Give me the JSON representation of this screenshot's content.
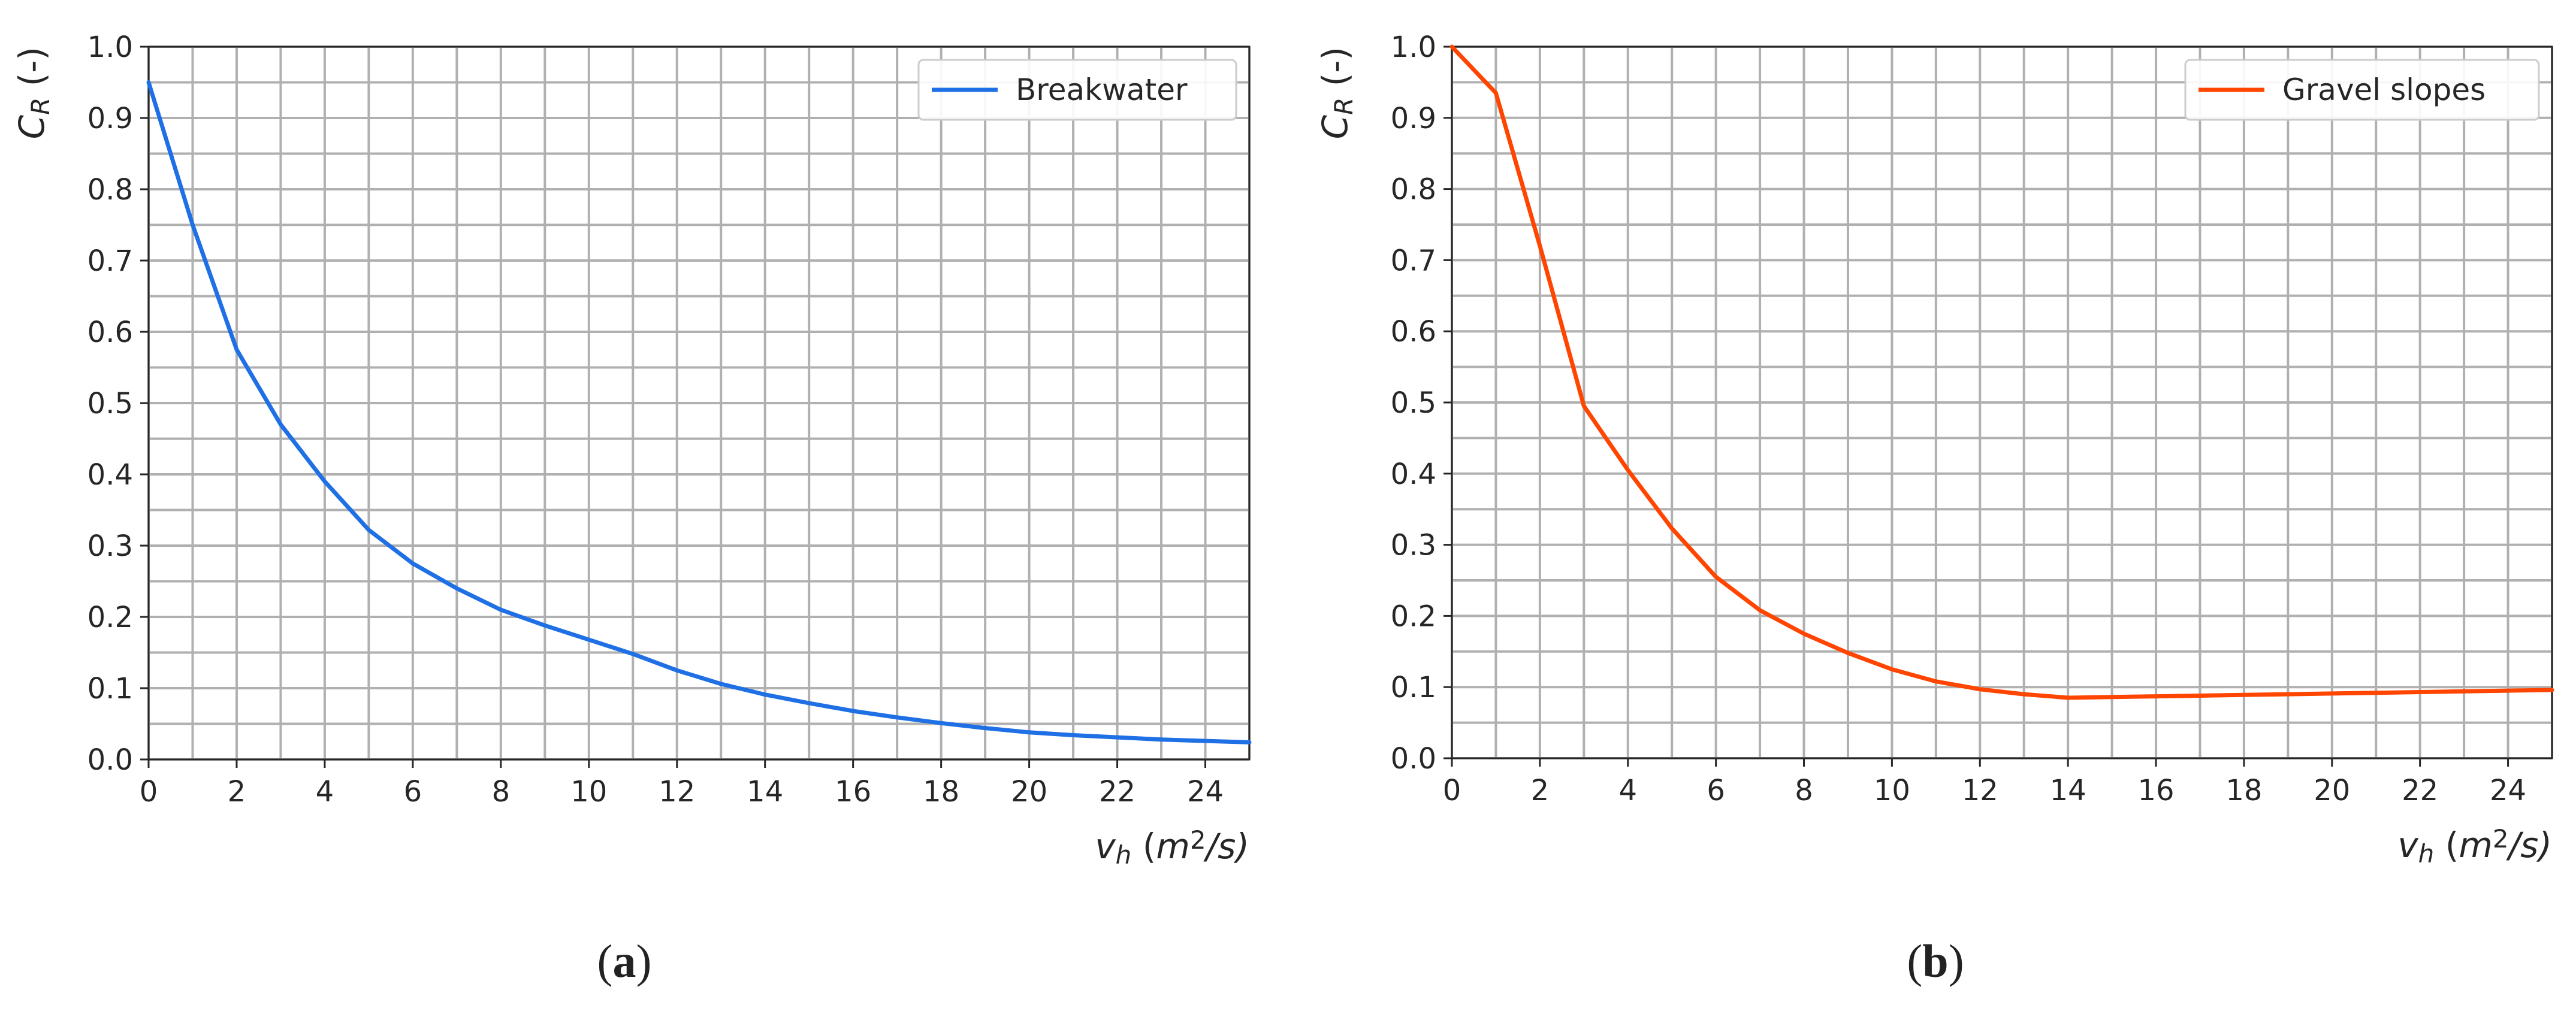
{
  "chart_data": [
    {
      "type": "line",
      "panel_label_open": "(",
      "panel_label_letter": "a",
      "panel_label_close": ")",
      "xlabel_main": "v",
      "xlabel_sub": "h",
      "xlabel_open": " (",
      "xlabel_unit": "m",
      "xlabel_sup": "2",
      "xlabel_tail": "/s)",
      "ylabel_main": "C",
      "ylabel_sub": "R",
      "ylabel_tail": " (-)",
      "xlim": [
        0,
        25
      ],
      "ylim": [
        0,
        1.0
      ],
      "x_ticks": [
        "0",
        "2",
        "4",
        "6",
        "8",
        "10",
        "12",
        "14",
        "16",
        "18",
        "20",
        "22",
        "24"
      ],
      "y_ticks": [
        "0.0",
        "0.1",
        "0.2",
        "0.3",
        "0.4",
        "0.5",
        "0.6",
        "0.7",
        "0.8",
        "0.9",
        "1.0"
      ],
      "grid": true,
      "legend_position": "top-right",
      "series": [
        {
          "name": "Breakwater",
          "color": "#1f6fe5",
          "x": [
            0,
            1,
            2,
            3,
            4,
            5,
            6,
            7,
            8,
            9,
            10,
            11,
            12,
            13,
            14,
            15,
            16,
            17,
            18,
            19,
            20,
            21,
            22,
            23,
            24,
            25
          ],
          "y": [
            0.95,
            0.75,
            0.575,
            0.47,
            0.39,
            0.322,
            0.275,
            0.24,
            0.21,
            0.188,
            0.168,
            0.148,
            0.125,
            0.106,
            0.091,
            0.079,
            0.068,
            0.059,
            0.051,
            0.044,
            0.038,
            0.034,
            0.031,
            0.028,
            0.026,
            0.024
          ]
        }
      ]
    },
    {
      "type": "line",
      "panel_label_open": "(",
      "panel_label_letter": "b",
      "panel_label_close": ")",
      "xlabel_main": "v",
      "xlabel_sub": "h",
      "xlabel_open": " (",
      "xlabel_unit": "m",
      "xlabel_sup": "2",
      "xlabel_tail": "/s)",
      "ylabel_main": "C",
      "ylabel_sub": "R",
      "ylabel_tail": " (-)",
      "xlim": [
        0,
        25
      ],
      "ylim": [
        0,
        1.0
      ],
      "x_ticks": [
        "0",
        "2",
        "4",
        "6",
        "8",
        "10",
        "12",
        "14",
        "16",
        "18",
        "20",
        "22",
        "24"
      ],
      "y_ticks": [
        "0.0",
        "0.1",
        "0.2",
        "0.3",
        "0.4",
        "0.5",
        "0.6",
        "0.7",
        "0.8",
        "0.9",
        "1.0"
      ],
      "grid": true,
      "legend_position": "top-right",
      "series": [
        {
          "name": "Gravel slopes",
          "color": "#ff4500",
          "x": [
            0,
            1,
            2,
            3,
            4,
            5,
            6,
            7,
            8,
            9,
            10,
            11,
            12,
            13,
            14,
            15,
            16,
            17,
            18,
            19,
            20,
            21,
            22,
            23,
            24,
            25
          ],
          "y": [
            1.0,
            0.935,
            0.72,
            0.495,
            0.405,
            0.323,
            0.255,
            0.208,
            0.175,
            0.148,
            0.125,
            0.108,
            0.097,
            0.09,
            0.085,
            0.086,
            0.087,
            0.088,
            0.089,
            0.09,
            0.091,
            0.092,
            0.093,
            0.094,
            0.095,
            0.096
          ]
        }
      ]
    }
  ]
}
